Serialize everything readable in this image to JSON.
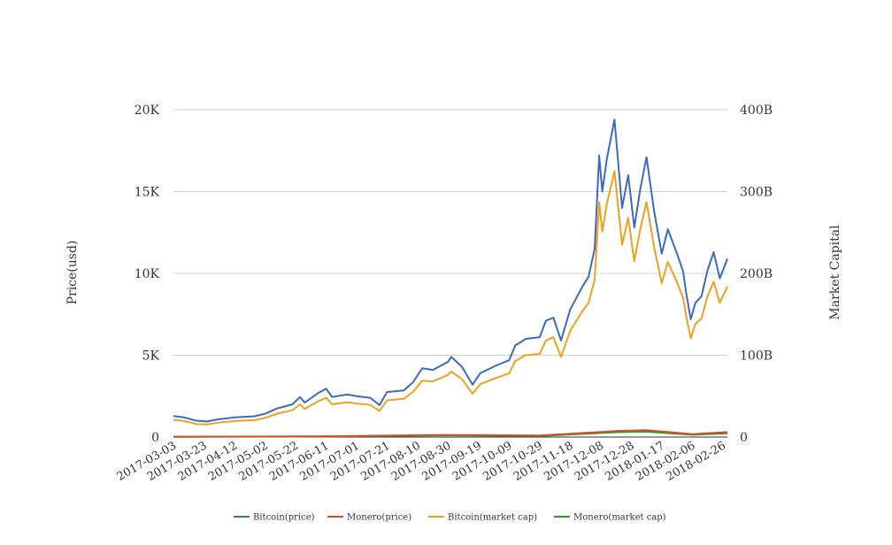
{
  "chart_data": {
    "type": "line",
    "title": "",
    "ylabel_left": "Price(usd)",
    "ylabel_right": "Market Capital",
    "y_left_range": [
      0,
      20000
    ],
    "y_right_range": [
      0,
      400000000000
    ],
    "y_left_ticks": [
      {
        "value": 0,
        "label": "0"
      },
      {
        "value": 5000,
        "label": "5K"
      },
      {
        "value": 10000,
        "label": "10K"
      },
      {
        "value": 15000,
        "label": "15K"
      },
      {
        "value": 20000,
        "label": "20K"
      }
    ],
    "y_right_ticks": [
      {
        "value": 0,
        "label": "0"
      },
      {
        "value": 100000000000,
        "label": "100B"
      },
      {
        "value": 200000000000,
        "label": "200B"
      },
      {
        "value": 300000000000,
        "label": "300B"
      },
      {
        "value": 400000000000,
        "label": "400B"
      }
    ],
    "x_range": [
      "2017-03-03",
      "2018-03-01"
    ],
    "x_tick_labels": [
      "2017-03-03",
      "2017-03-23",
      "2017-04-12",
      "2017-05-02",
      "2017-05-22",
      "2017-06-11",
      "2017-07-01",
      "2017-07-21",
      "2017-08-10",
      "2017-08-30",
      "2017-09-19",
      "2017-10-09",
      "2017-10-29",
      "2017-11-18",
      "2017-12-08",
      "2017-12-28",
      "2018-01-17",
      "2018-02-06",
      "2018-02-26"
    ],
    "grid": true,
    "legend_position": "bottom",
    "series": [
      {
        "name": "Bitcoin(price)",
        "axis": "left",
        "color": "#3b6abf",
        "points": [
          [
            "2017-03-03",
            1280
          ],
          [
            "2017-03-10",
            1200
          ],
          [
            "2017-03-18",
            1000
          ],
          [
            "2017-03-25",
            950
          ],
          [
            "2017-04-01",
            1080
          ],
          [
            "2017-04-12",
            1200
          ],
          [
            "2017-04-25",
            1270
          ],
          [
            "2017-05-02",
            1420
          ],
          [
            "2017-05-10",
            1750
          ],
          [
            "2017-05-20",
            2000
          ],
          [
            "2017-05-25",
            2450
          ],
          [
            "2017-05-28",
            2100
          ],
          [
            "2017-06-06",
            2700
          ],
          [
            "2017-06-11",
            2950
          ],
          [
            "2017-06-15",
            2450
          ],
          [
            "2017-06-25",
            2600
          ],
          [
            "2017-07-01",
            2500
          ],
          [
            "2017-07-10",
            2400
          ],
          [
            "2017-07-16",
            1950
          ],
          [
            "2017-07-21",
            2750
          ],
          [
            "2017-08-01",
            2850
          ],
          [
            "2017-08-07",
            3350
          ],
          [
            "2017-08-13",
            4200
          ],
          [
            "2017-08-20",
            4100
          ],
          [
            "2017-08-30",
            4600
          ],
          [
            "2017-09-01",
            4900
          ],
          [
            "2017-09-08",
            4300
          ],
          [
            "2017-09-15",
            3200
          ],
          [
            "2017-09-20",
            3900
          ],
          [
            "2017-09-30",
            4350
          ],
          [
            "2017-10-09",
            4700
          ],
          [
            "2017-10-13",
            5600
          ],
          [
            "2017-10-20",
            6000
          ],
          [
            "2017-10-29",
            6100
          ],
          [
            "2017-11-02",
            7100
          ],
          [
            "2017-11-07",
            7300
          ],
          [
            "2017-11-12",
            5900
          ],
          [
            "2017-11-18",
            7800
          ],
          [
            "2017-11-26",
            9200
          ],
          [
            "2017-11-30",
            9800
          ],
          [
            "2017-12-04",
            11500
          ],
          [
            "2017-12-07",
            17200
          ],
          [
            "2017-12-09",
            15000
          ],
          [
            "2017-12-12",
            17000
          ],
          [
            "2017-12-17",
            19400
          ],
          [
            "2017-12-22",
            14000
          ],
          [
            "2017-12-26",
            16000
          ],
          [
            "2017-12-30",
            12800
          ],
          [
            "2018-01-03",
            15200
          ],
          [
            "2018-01-07",
            17100
          ],
          [
            "2018-01-12",
            13800
          ],
          [
            "2018-01-17",
            11200
          ],
          [
            "2018-01-21",
            12700
          ],
          [
            "2018-01-27",
            11200
          ],
          [
            "2018-01-31",
            10100
          ],
          [
            "2018-02-02",
            8800
          ],
          [
            "2018-02-05",
            7200
          ],
          [
            "2018-02-08",
            8200
          ],
          [
            "2018-02-12",
            8600
          ],
          [
            "2018-02-16",
            10200
          ],
          [
            "2018-02-20",
            11300
          ],
          [
            "2018-02-24",
            9700
          ],
          [
            "2018-03-01",
            10900
          ]
        ]
      },
      {
        "name": "Monero(price)",
        "axis": "left",
        "color": "#d0502a",
        "points": [
          [
            "2017-03-03",
            20
          ],
          [
            "2017-06-01",
            40
          ],
          [
            "2017-08-25",
            130
          ],
          [
            "2017-10-29",
            90
          ],
          [
            "2017-12-20",
            380
          ],
          [
            "2018-01-07",
            420
          ],
          [
            "2018-02-06",
            180
          ],
          [
            "2018-03-01",
            300
          ]
        ]
      },
      {
        "name": "Bitcoin(market cap)",
        "axis": "right",
        "color": "#f0a020",
        "points": [
          [
            "2017-03-03",
            21000000000
          ],
          [
            "2017-03-10",
            19600000000
          ],
          [
            "2017-03-18",
            16000000000
          ],
          [
            "2017-03-25",
            15400000000
          ],
          [
            "2017-04-01",
            17600000000
          ],
          [
            "2017-04-12",
            19600000000
          ],
          [
            "2017-04-25",
            20600000000
          ],
          [
            "2017-05-02",
            23200000000
          ],
          [
            "2017-05-10",
            28600000000
          ],
          [
            "2017-05-20",
            32800000000
          ],
          [
            "2017-05-25",
            40000000000
          ],
          [
            "2017-05-28",
            34400000000
          ],
          [
            "2017-06-06",
            44000000000
          ],
          [
            "2017-06-11",
            48000000000
          ],
          [
            "2017-06-15",
            40000000000
          ],
          [
            "2017-06-25",
            42600000000
          ],
          [
            "2017-07-01",
            41000000000
          ],
          [
            "2017-07-10",
            39400000000
          ],
          [
            "2017-07-16",
            32000000000
          ],
          [
            "2017-07-21",
            45000000000
          ],
          [
            "2017-08-01",
            46800000000
          ],
          [
            "2017-08-07",
            55000000000
          ],
          [
            "2017-08-13",
            69000000000
          ],
          [
            "2017-08-20",
            68000000000
          ],
          [
            "2017-08-30",
            76000000000
          ],
          [
            "2017-09-01",
            80000000000
          ],
          [
            "2017-09-08",
            71000000000
          ],
          [
            "2017-09-15",
            53000000000
          ],
          [
            "2017-09-20",
            64600000000
          ],
          [
            "2017-09-30",
            72000000000
          ],
          [
            "2017-10-09",
            78000000000
          ],
          [
            "2017-10-13",
            93000000000
          ],
          [
            "2017-10-20",
            100000000000
          ],
          [
            "2017-10-29",
            101600000000
          ],
          [
            "2017-11-02",
            118000000000
          ],
          [
            "2017-11-07",
            122000000000
          ],
          [
            "2017-11-12",
            98000000000
          ],
          [
            "2017-11-18",
            130000000000
          ],
          [
            "2017-11-26",
            154000000000
          ],
          [
            "2017-11-30",
            164000000000
          ],
          [
            "2017-12-04",
            192000000000
          ],
          [
            "2017-12-07",
            287000000000
          ],
          [
            "2017-12-09",
            251000000000
          ],
          [
            "2017-12-12",
            285000000000
          ],
          [
            "2017-12-17",
            325000000000
          ],
          [
            "2017-12-22",
            235000000000
          ],
          [
            "2017-12-26",
            268000000000
          ],
          [
            "2017-12-30",
            215000000000
          ],
          [
            "2018-01-03",
            255000000000
          ],
          [
            "2018-01-07",
            287000000000
          ],
          [
            "2018-01-12",
            232000000000
          ],
          [
            "2018-01-17",
            188000000000
          ],
          [
            "2018-01-21",
            214000000000
          ],
          [
            "2018-01-27",
            189000000000
          ],
          [
            "2018-01-31",
            170000000000
          ],
          [
            "2018-02-02",
            148000000000
          ],
          [
            "2018-02-05",
            121000000000
          ],
          [
            "2018-02-08",
            138000000000
          ],
          [
            "2018-02-12",
            145000000000
          ],
          [
            "2018-02-16",
            172000000000
          ],
          [
            "2018-02-20",
            190000000000
          ],
          [
            "2018-02-24",
            164000000000
          ],
          [
            "2018-03-01",
            184000000000
          ]
        ]
      },
      {
        "name": "Monero(market cap)",
        "axis": "right",
        "color": "#2e9a2e",
        "points": [
          [
            "2017-03-03",
            300000000
          ],
          [
            "2017-06-01",
            700000000
          ],
          [
            "2017-08-25",
            2000000000
          ],
          [
            "2017-10-29",
            1400000000
          ],
          [
            "2017-12-20",
            6000000000
          ],
          [
            "2018-01-07",
            6600000000
          ],
          [
            "2018-02-06",
            2800000000
          ],
          [
            "2018-03-01",
            4700000000
          ]
        ]
      }
    ]
  }
}
